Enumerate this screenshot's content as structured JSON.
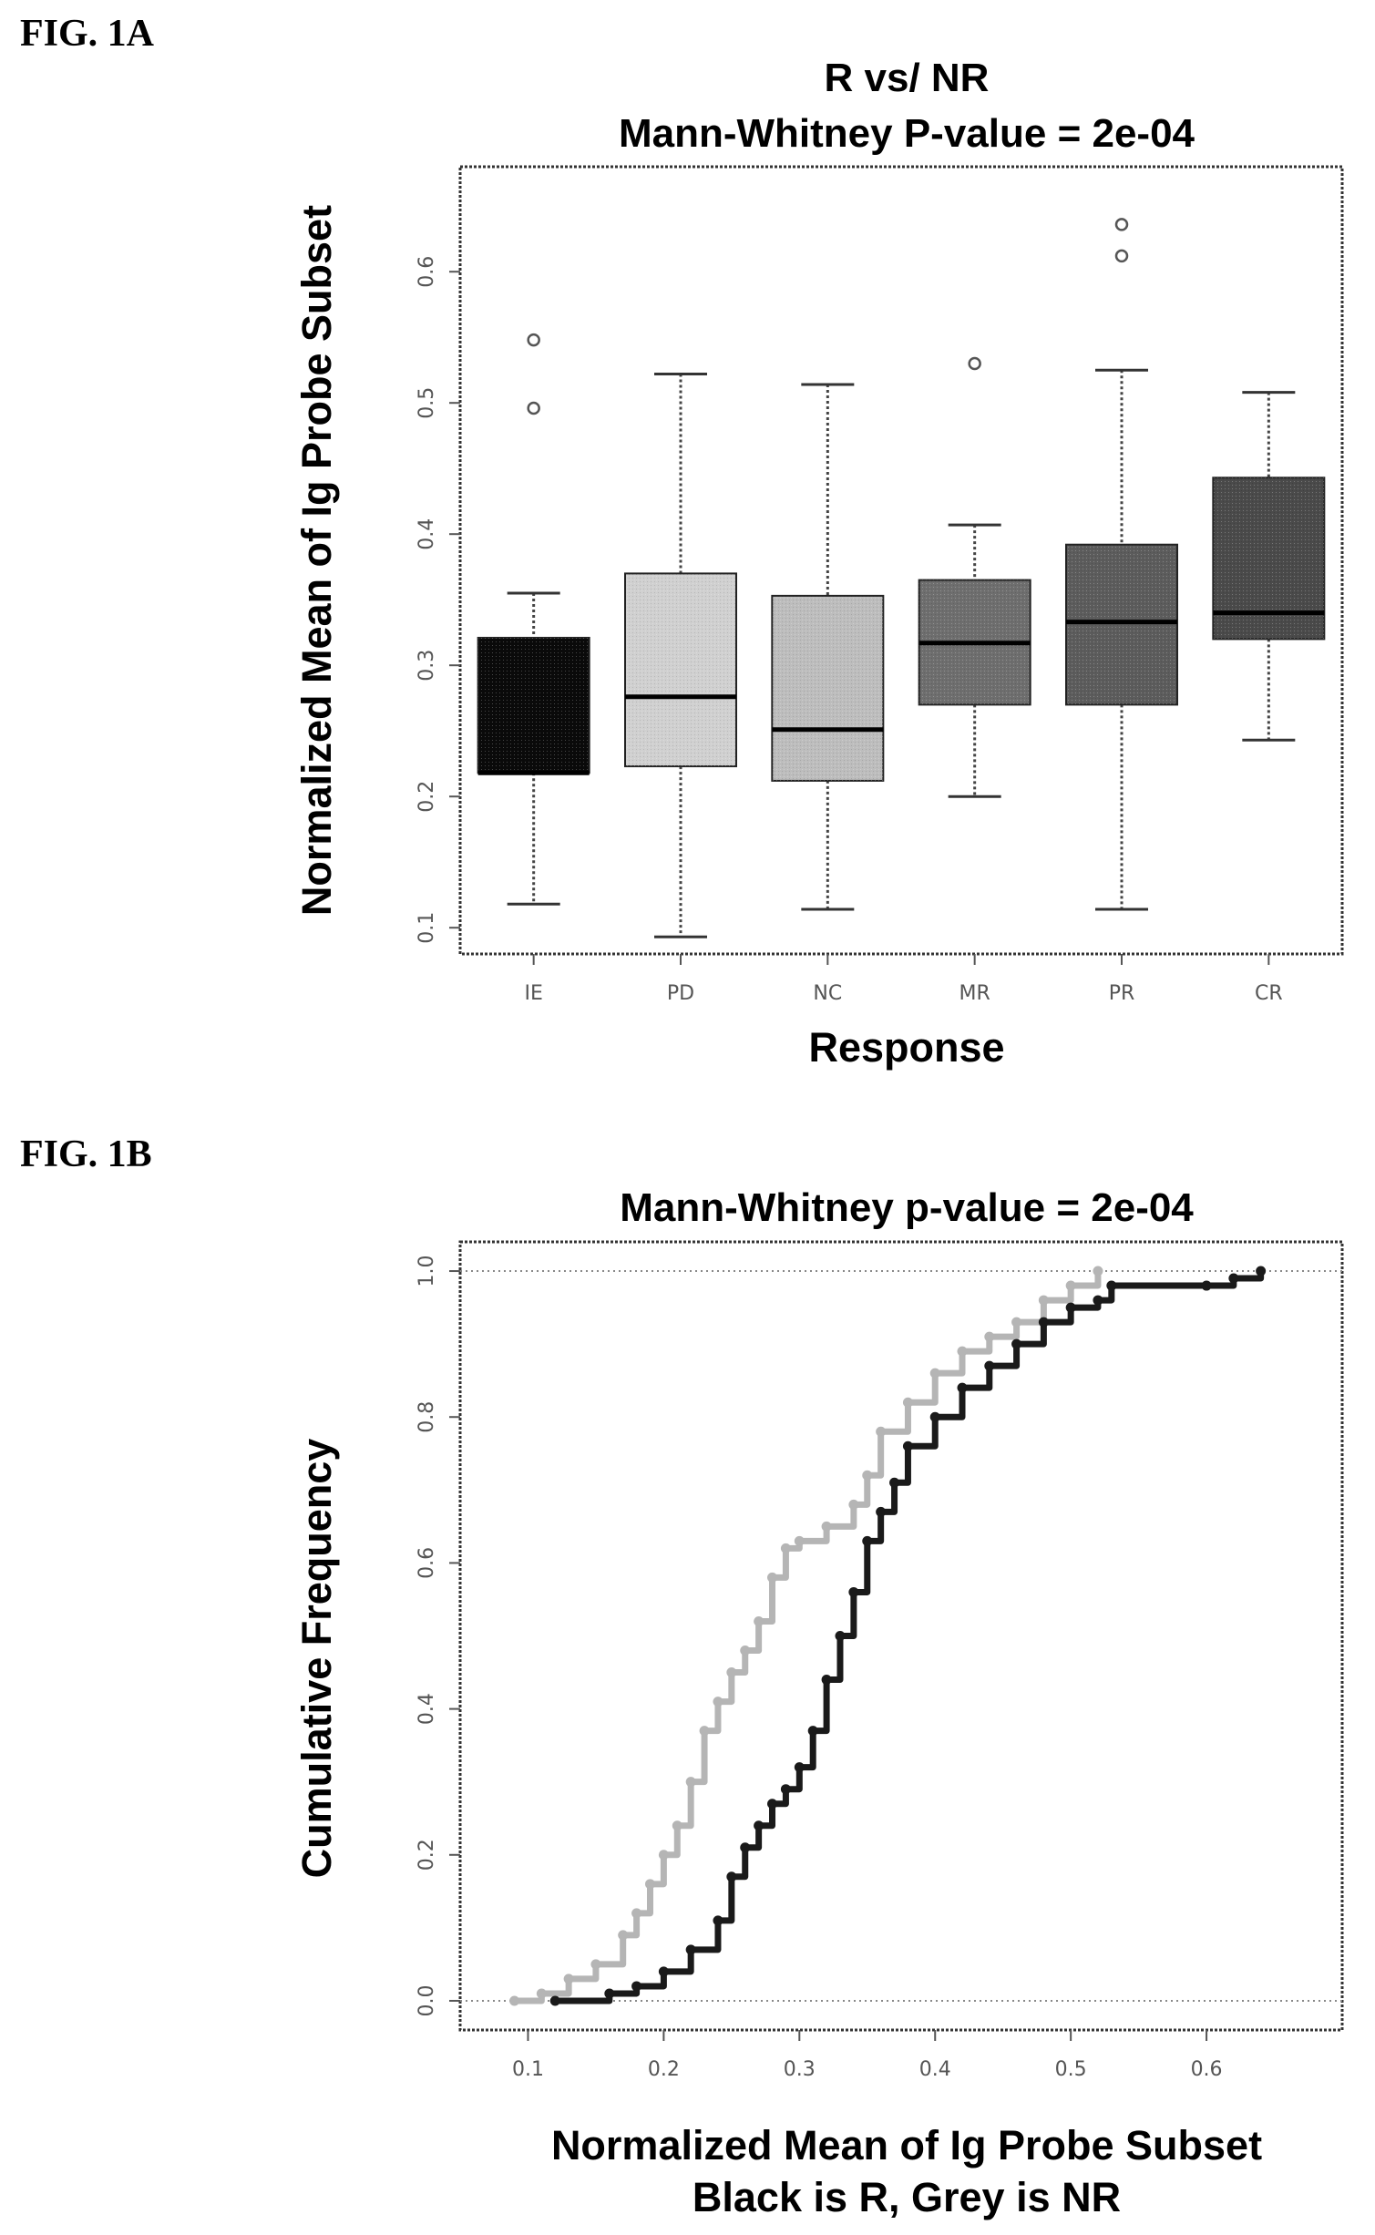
{
  "figure_labels": {
    "a": "FIG. 1A",
    "b": "FIG. 1B"
  },
  "colors": {
    "IE": "#0a0a0a",
    "PD": "#d0d0d0",
    "NC": "#bdbdbd",
    "MR": "#6e6e6e",
    "PR": "#5c5c5c",
    "CR": "#4a4a4a",
    "R_series": "#1a1a1a",
    "NR_series": "#b5b5b5"
  },
  "chart_data": [
    {
      "type": "box",
      "title": "R vs/ NR",
      "subtitle": "Mann-Whitney P-value = 2e-04",
      "xlabel": "Response",
      "ylabel": "Normalized Mean of Ig Probe Subset",
      "ylim": [
        0.08,
        0.68
      ],
      "yticks": [
        0.1,
        0.2,
        0.3,
        0.4,
        0.5,
        0.6
      ],
      "ytick_labels": [
        "0.1",
        "0.2",
        "0.3",
        "0.4",
        "0.5",
        "0.6"
      ],
      "categories": [
        "IE",
        "PD",
        "NC",
        "MR",
        "PR",
        "CR"
      ],
      "boxes": [
        {
          "category": "IE",
          "whisker_low": 0.118,
          "q1": 0.218,
          "median": 0.218,
          "q3": 0.321,
          "whisker_high": 0.355,
          "outliers": [
            0.496,
            0.548
          ]
        },
        {
          "category": "PD",
          "whisker_low": 0.093,
          "q1": 0.223,
          "median": 0.276,
          "q3": 0.37,
          "whisker_high": 0.522,
          "outliers": []
        },
        {
          "category": "NC",
          "whisker_low": 0.114,
          "q1": 0.212,
          "median": 0.251,
          "q3": 0.353,
          "whisker_high": 0.514,
          "outliers": []
        },
        {
          "category": "MR",
          "whisker_low": 0.2,
          "q1": 0.27,
          "median": 0.317,
          "q3": 0.365,
          "whisker_high": 0.407,
          "outliers": [
            0.53
          ]
        },
        {
          "category": "PR",
          "whisker_low": 0.114,
          "q1": 0.27,
          "median": 0.333,
          "q3": 0.392,
          "whisker_high": 0.525,
          "outliers": [
            0.612,
            0.636
          ]
        },
        {
          "category": "CR",
          "whisker_low": 0.243,
          "q1": 0.32,
          "median": 0.34,
          "q3": 0.443,
          "whisker_high": 0.508,
          "outliers": []
        }
      ]
    },
    {
      "type": "line",
      "title": "Mann-Whitney p-value = 2e-04",
      "xlabel": "Normalized Mean of Ig Probe Subset",
      "xlabel2": "Black is R, Grey is NR",
      "ylabel": "Cumulative Frequency",
      "xlim": [
        0.05,
        0.7
      ],
      "ylim": [
        -0.04,
        1.04
      ],
      "xticks": [
        0.1,
        0.2,
        0.3,
        0.4,
        0.5,
        0.6
      ],
      "xtick_labels": [
        "0.1",
        "0.2",
        "0.3",
        "0.4",
        "0.5",
        "0.6"
      ],
      "yticks": [
        0.0,
        0.2,
        0.4,
        0.6,
        0.8,
        1.0
      ],
      "ytick_labels": [
        "0.0",
        "0.2",
        "0.4",
        "0.6",
        "0.8",
        "1.0"
      ],
      "series": [
        {
          "key": "NR",
          "x": [
            0.09,
            0.11,
            0.13,
            0.15,
            0.17,
            0.18,
            0.19,
            0.2,
            0.21,
            0.22,
            0.23,
            0.24,
            0.25,
            0.26,
            0.27,
            0.28,
            0.29,
            0.3,
            0.32,
            0.34,
            0.35,
            0.36,
            0.38,
            0.4,
            0.42,
            0.44,
            0.46,
            0.48,
            0.5,
            0.52
          ],
          "y": [
            0.0,
            0.01,
            0.03,
            0.05,
            0.09,
            0.12,
            0.16,
            0.2,
            0.24,
            0.3,
            0.37,
            0.41,
            0.45,
            0.48,
            0.52,
            0.58,
            0.62,
            0.63,
            0.65,
            0.68,
            0.72,
            0.78,
            0.82,
            0.86,
            0.89,
            0.91,
            0.93,
            0.96,
            0.98,
            1.0
          ]
        },
        {
          "key": "R",
          "x": [
            0.12,
            0.16,
            0.18,
            0.2,
            0.22,
            0.24,
            0.25,
            0.26,
            0.27,
            0.28,
            0.29,
            0.3,
            0.31,
            0.32,
            0.33,
            0.34,
            0.35,
            0.36,
            0.37,
            0.38,
            0.4,
            0.42,
            0.44,
            0.46,
            0.48,
            0.5,
            0.52,
            0.53,
            0.6,
            0.62,
            0.64
          ],
          "y": [
            0.0,
            0.01,
            0.02,
            0.04,
            0.07,
            0.11,
            0.17,
            0.21,
            0.24,
            0.27,
            0.29,
            0.32,
            0.37,
            0.44,
            0.5,
            0.56,
            0.63,
            0.67,
            0.71,
            0.76,
            0.8,
            0.84,
            0.87,
            0.9,
            0.93,
            0.95,
            0.96,
            0.98,
            0.98,
            0.99,
            1.0
          ]
        }
      ]
    }
  ]
}
